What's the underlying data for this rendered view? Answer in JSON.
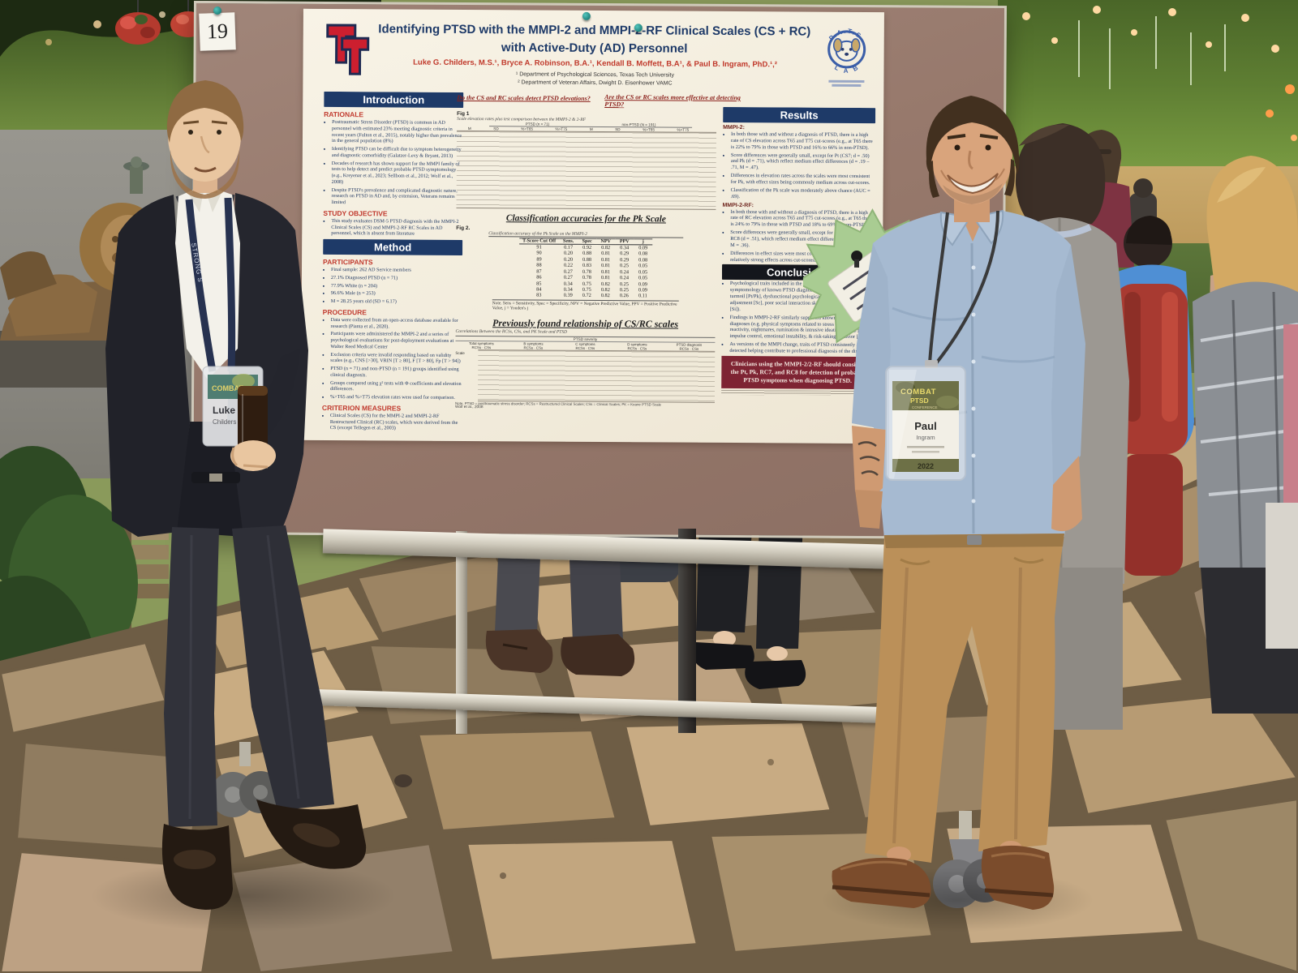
{
  "colors": {
    "header_band_navy": "#1e3a68",
    "conclusions_band_black": "#14161c",
    "accent_red": "#c0392b",
    "clinical_box_maroon": "#7e2433",
    "starburst_green": "#a9cc92",
    "poster_paper": "#f5f0e3",
    "cork_board": "#97796c"
  },
  "scene": {
    "poster_number": "19",
    "lanyard_text": "STRONG S"
  },
  "poster": {
    "title_line1": "Identifying PTSD with the MMPI-2 and MMPI-2-RF Clinical Scales (CS + RC)",
    "title_line2": "with Active-Duty (AD) Personnel",
    "authors": "Luke G. Childers, M.S.¹, Bryce A. Robinson, B.A.¹, Kendall B. Moffett, B.A¹, & Paul B. Ingram, PhD.¹,²",
    "affiliation1": "¹ Department of Psychological Sciences, Texas Tech University",
    "affiliation2": "² Department of Veteran Affairs, Dwight D. Eisenhower VAMC",
    "pats_logo": {
      "arc_top": "P.A.T.S.",
      "arc_bottom": "L A B"
    },
    "introduction": {
      "header": "Introduction",
      "rationale_label": "RATIONALE",
      "bullets": [
        "Posttraumatic Stress Disorder (PTSD) is common in AD personnel with estimated 23% meeting diagnostic criteria in recent years (Fulton et al., 2015), notably higher than prevalence in the general population (8%)",
        "Identifying PTSD can be difficult due to symptom heterogeneity and diagnostic comorbidity (Galatzer-Levy & Bryant, 2013)",
        "Decades of research has shown support for the MMPI family of tests to help detect and predict probable PTSD symptomology (e.g., Kreyenar et al., 2023; Sellbom et al., 2012; Wolf et al., 2008)",
        "Despite PTSD's prevalence and complicated diagnostic nature, research on PTSD in AD and, by extension, Veterans remains limited"
      ],
      "objective_label": "STUDY OBJECTIVE",
      "objective": "This study evaluates DSM-5 PTSD diagnosis with the MMPI-2 Clinical Scales (CS) and MMPI-2-RF RC Scales in AD personnel, which is absent from literature"
    },
    "method": {
      "header": "Method",
      "participants_label": "PARTICIPANTS",
      "participants": [
        "Final sample: 262 AD Service members",
        "27.1% Diagnosed PTSD (n = 71)",
        "77.9% White (n = 204)",
        "96.6% Male (n = 253)",
        "M = 28.25 years old (SD = 6.17)"
      ],
      "procedure_label": "PROCEDURE",
      "procedure": [
        "Data were collected from an open-access database available for research (Pianta et al., 2020).",
        "Participants were administered the MMPI-2 and a series of psychological evaluations for post-deployment evaluations at Walter Reed Medical Center",
        "Exclusion criteria were invalid responding based on validity scales (e.g., CNS [>30], VRIN [T ≥ 80], F [T > 80], Fp [T > 94])"
      ],
      "analyses": [
        "PTSD (n = 71) and non-PTSD (n = 191) groups identified using clinical diagnosis.",
        "Groups compared using χ² tests with Φ coefficients and elevation differences.",
        "%>T65 and %>T75 elevation rates were used for comparison."
      ],
      "criterion_label": "CRITERION MEASURES",
      "criterion": "Clinical Scales (CS) for the MMPI-2 and MMPI-2-RF Restructured Clinical (RC) scales, which were derived from the CS (except Tellegen et al., 2003)"
    },
    "questions": {
      "q1": "Do the CS and RC scales detect PTSD elevations?",
      "q2": "Are the CS or RC scales more effective at detecting PTSD?"
    },
    "fig1": {
      "label": "Fig 1",
      "caption": "Scale elevation rates plus test comparison between the MMPI-2 & 2-RF",
      "group1": "PTSD (n = 71)",
      "group2": "non-PTSD (N = 191)",
      "col_m": "M",
      "col_sd": "SD",
      "col_t65": "%>T65",
      "col_t75": "%>T75"
    },
    "pk": {
      "title": "Classification accuracies for the Pk Scale",
      "fig_label": "Fig 2.",
      "caption": "Classification accuracy of the Pk Scale on the MMPI-2",
      "headers": [
        "T-Score Cut Off",
        "Sens.",
        "Spec",
        "NPV",
        "PPV",
        "j"
      ],
      "rows": [
        [
          "91",
          "0.17",
          "0.92",
          "0.82",
          "0.34",
          "0.09"
        ],
        [
          "90",
          "0.20",
          "0.88",
          "0.81",
          "0.29",
          "0.08"
        ],
        [
          "89",
          "0.20",
          "0.88",
          "0.81",
          "0.29",
          "0.08"
        ],
        [
          "88",
          "0.22",
          "0.83",
          "0.81",
          "0.25",
          "0.05"
        ],
        [
          "87",
          "0.27",
          "0.78",
          "0.81",
          "0.24",
          "0.05"
        ],
        [
          "86",
          "0.27",
          "0.78",
          "0.81",
          "0.24",
          "0.05"
        ],
        [
          "85",
          "0.34",
          "0.75",
          "0.82",
          "0.25",
          "0.09"
        ],
        [
          "84",
          "0.34",
          "0.75",
          "0.82",
          "0.25",
          "0.09"
        ],
        [
          "83",
          "0.39",
          "0.72",
          "0.82",
          "0.26",
          "0.11"
        ]
      ],
      "note": "Note. Sens = Sensitivity, Spec = Specificity, NPV = Negative Predictive Value, PPV = Positive Predictive Value, j = Youden's j"
    },
    "csrc": {
      "title": "Previously found relationship of CS/RC scales",
      "caption": "Correlations Between the RCSs, CSs, and PK Scale and PTSD",
      "span_header": "PTSD severity",
      "groups": [
        "Total symptoms",
        "B symptoms",
        "C symptoms",
        "D symptoms",
        "PTSD diagnosis"
      ],
      "subcol1": "RCSs",
      "subcol2": "CSs",
      "row_label": "Scale",
      "note": "Note. PTSD = posttraumatic stress disorder; RCSs = Restructured Clinical Scales; CSs = Clinical Scales; PK = Keane PTSD Scale",
      "source": "Wolf et al., 2008"
    },
    "results": {
      "header": "Results",
      "mmpi2_label": "MMPI-2:",
      "mmpi2_bullets": [
        "In both those with and without a diagnosis of PTSD, there is a high rate of CS elevation across T65 and T75 cut-scores (e.g., at T65 there is 22% to 79% in those with PTSD and 16% to 66% in non-PTSD).",
        "Score differences were generally small, except for Pt (CS7; d = .50) and Pk (d = .71), which reflect medium effect differences (d = .19 – .71, M = .47).",
        "Differences in elevation rates across the scales were most consistent for Pk, with effect sizes being commonly medium across cut-scores.",
        "Classification of the Pk scale was moderately above chance (AUC = .69)."
      ],
      "rf_label": "MMPI-2-RF:",
      "rf_bullets": [
        "In both those with and without a diagnosis of PTSD, there is a high rate of RC elevation across T65 and T75 cut-scores (e.g., at T65 there is 24% to 79% in those with PTSD and 18% to 69% in non-PTSD).",
        "Score differences were generally small, except for … (d = .50) and RC8 (d = .51), which reflect medium effect differences (d = .17 – .54, M = .36).",
        "Differences in effect sizes were most consistent …, with medium and relatively strong effects across cut-scores."
      ]
    },
    "conclusions": {
      "header": "Conclusions",
      "bullets": [
        "Psychological traits included in the significant MMPI-2 scales support symptomology of known PTSD diagnoses (e.g. anxious psychological turmoil [Pt/Pk], dysfunctional psychological and interpersonal adjustment [Sc], poor social interaction skills & thought dysfunction [Si]).",
        "Findings in MMPI-2-RF similarly supported known markers of PTSD diagnoses (e.g. physical symptoms related to stress [RC1], stress reactivity, nightmares, rumination & intrusive ideation [RC7], poor impulse control, emotional instability, & risk-taking behavior [RC9]).",
        "As versions of the MMPI change, traits of PTSD consistently are detected helping contribute to professional diagnosis of the disorder."
      ],
      "clinical_box": "Clinicians using the MMPI-2/2-RF should consider the Pt, Pk, RC7, and RC8 for detection of probable PTSD symptoms when diagnosing PTSD."
    }
  },
  "badges": {
    "paul": {
      "conference_line1": "COMBAT",
      "conference_line2": "PTSD",
      "conference_sub": "CONFERENCE",
      "first_name": "Paul",
      "last_name": "Ingram",
      "year": "2022"
    },
    "luke": {
      "conference_line1": "COMBAT",
      "first_name": "Luke",
      "last_name": "Childers"
    }
  }
}
